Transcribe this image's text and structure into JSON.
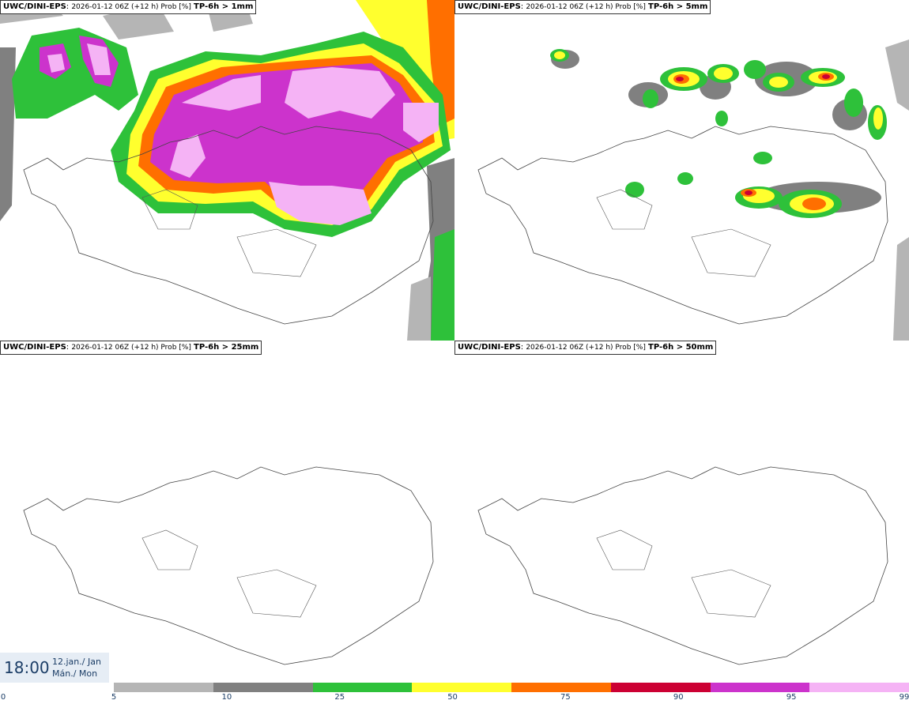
{
  "panels": [
    {
      "model": "UWC/DINI-EPS",
      "run": "2026-01-12 06Z (+12 h) Prob [%]",
      "variable": "TP-6h > 1mm"
    },
    {
      "model": "UWC/DINI-EPS",
      "run": "2026-01-12 06Z (+12 h) Prob [%]",
      "variable": "TP-6h > 5mm"
    },
    {
      "model": "UWC/DINI-EPS",
      "run": "2026-01-12 06Z (+12 h) Prob [%]",
      "variable": "TP-6h > 25mm"
    },
    {
      "model": "UWC/DINI-EPS",
      "run": "2026-01-12 06Z (+12 h) Prob [%]",
      "variable": "TP-6h > 50mm"
    }
  ],
  "time": {
    "clock": "18:00",
    "date_line1": "12.jan./ Jan",
    "date_line2": "Mán./ Mon"
  },
  "colorbar": {
    "colors": [
      "#b5b5b5",
      "#808080",
      "#2ec13a",
      "#ffff2e",
      "#ff6f00",
      "#cc0033",
      "#cc33cc",
      "#f5b3f5"
    ],
    "ticks": [
      "0",
      "5",
      "10",
      "25",
      "50",
      "75",
      "90",
      "95",
      "99"
    ]
  }
}
